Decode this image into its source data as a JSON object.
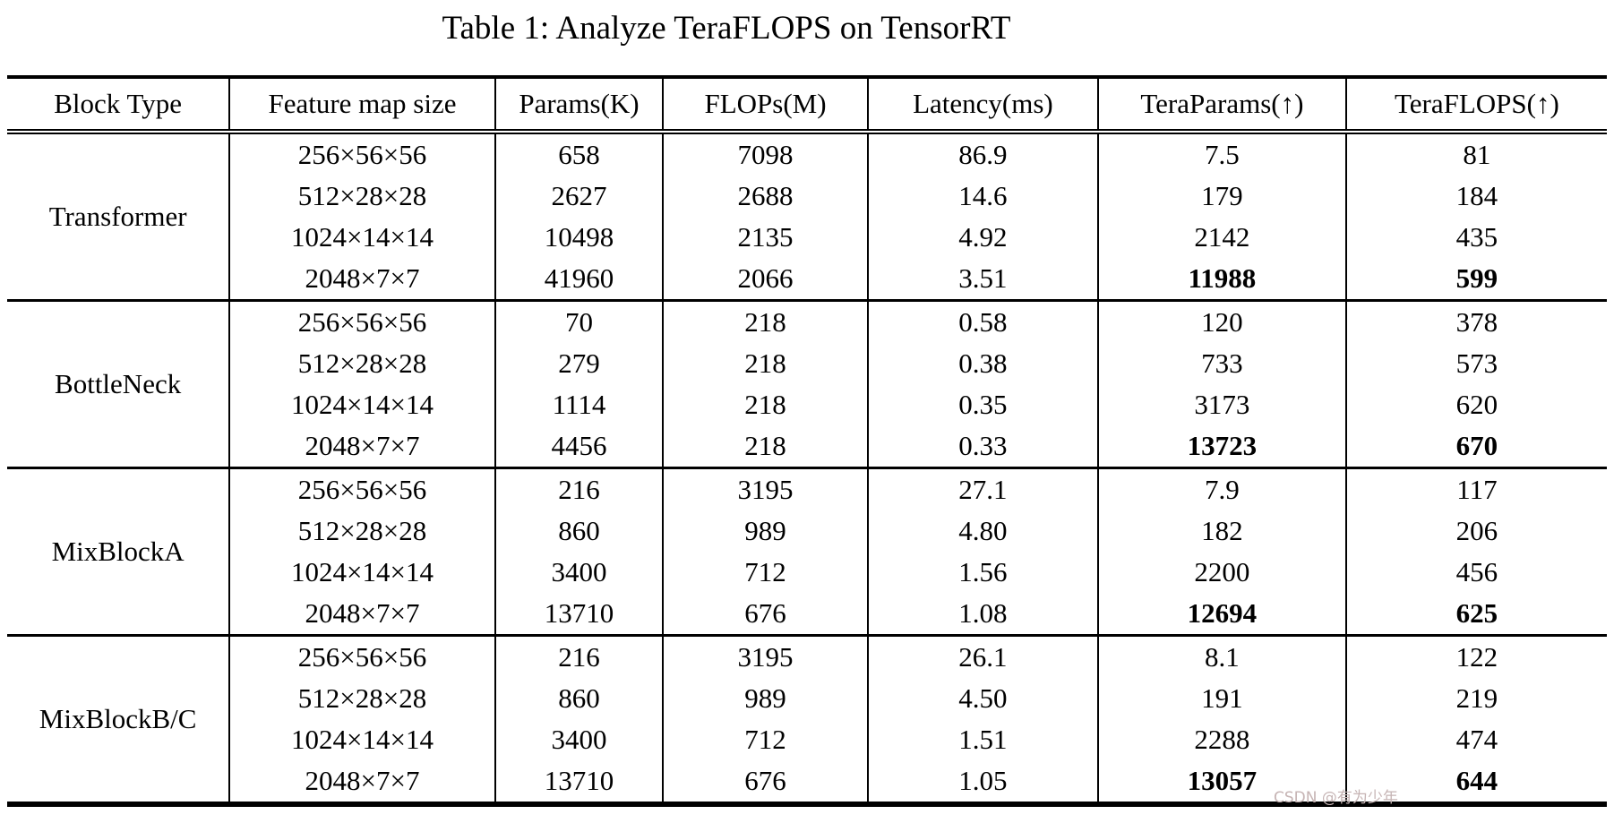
{
  "title": "Table 1: Analyze TeraFLOPS on TensorRT",
  "watermark": {
    "text": "CSDN @有为少年"
  },
  "table": {
    "columns": [
      "Block Type",
      "Feature map size",
      "Params(K)",
      "FLOPs(M)",
      "Latency(ms)",
      "TeraParams(↑)",
      "TeraFLOPS(↑)"
    ],
    "blocks": [
      {
        "block_type": "Transformer",
        "rows": [
          {
            "cells": [
              "256×56×56",
              "658",
              "7098",
              "86.9",
              "7.5",
              "81"
            ],
            "bold_cells": []
          },
          {
            "cells": [
              "512×28×28",
              "2627",
              "2688",
              "14.6",
              "179",
              "184"
            ],
            "bold_cells": []
          },
          {
            "cells": [
              "1024×14×14",
              "10498",
              "2135",
              "4.92",
              "2142",
              "435"
            ],
            "bold_cells": []
          },
          {
            "cells": [
              "2048×7×7",
              "41960",
              "2066",
              "3.51",
              "11988",
              "599"
            ],
            "bold_cells": [
              4,
              5
            ]
          }
        ]
      },
      {
        "block_type": "BottleNeck",
        "rows": [
          {
            "cells": [
              "256×56×56",
              "70",
              "218",
              "0.58",
              "120",
              "378"
            ],
            "bold_cells": []
          },
          {
            "cells": [
              "512×28×28",
              "279",
              "218",
              "0.38",
              "733",
              "573"
            ],
            "bold_cells": []
          },
          {
            "cells": [
              "1024×14×14",
              "1114",
              "218",
              "0.35",
              "3173",
              "620"
            ],
            "bold_cells": []
          },
          {
            "cells": [
              "2048×7×7",
              "4456",
              "218",
              "0.33",
              "13723",
              "670"
            ],
            "bold_cells": [
              4,
              5
            ]
          }
        ]
      },
      {
        "block_type": "MixBlockA",
        "rows": [
          {
            "cells": [
              "256×56×56",
              "216",
              "3195",
              "27.1",
              "7.9",
              "117"
            ],
            "bold_cells": []
          },
          {
            "cells": [
              "512×28×28",
              "860",
              "989",
              "4.80",
              "182",
              "206"
            ],
            "bold_cells": []
          },
          {
            "cells": [
              "1024×14×14",
              "3400",
              "712",
              "1.56",
              "2200",
              "456"
            ],
            "bold_cells": []
          },
          {
            "cells": [
              "2048×7×7",
              "13710",
              "676",
              "1.08",
              "12694",
              "625"
            ],
            "bold_cells": [
              4,
              5
            ]
          }
        ]
      },
      {
        "block_type": "MixBlockB/C",
        "rows": [
          {
            "cells": [
              "256×56×56",
              "216",
              "3195",
              "26.1",
              "8.1",
              "122"
            ],
            "bold_cells": []
          },
          {
            "cells": [
              "512×28×28",
              "860",
              "989",
              "4.50",
              "191",
              "219"
            ],
            "bold_cells": []
          },
          {
            "cells": [
              "1024×14×14",
              "3400",
              "712",
              "1.51",
              "2288",
              "474"
            ],
            "bold_cells": []
          },
          {
            "cells": [
              "2048×7×7",
              "13710",
              "676",
              "1.05",
              "13057",
              "644"
            ],
            "bold_cells": [
              4,
              5
            ]
          }
        ]
      }
    ]
  },
  "chart_data": {
    "type": "table",
    "title": "Table 1: Analyze TeraFLOPS on TensorRT",
    "columns": [
      "Block Type",
      "Feature map size",
      "Params(K)",
      "FLOPs(M)",
      "Latency(ms)",
      "TeraParams(↑)",
      "TeraFLOPS(↑)"
    ],
    "rows": [
      [
        "Transformer",
        "256×56×56",
        "658",
        "7098",
        "86.9",
        "7.5",
        "81"
      ],
      [
        "Transformer",
        "512×28×28",
        "2627",
        "2688",
        "14.6",
        "179",
        "184"
      ],
      [
        "Transformer",
        "1024×14×14",
        "10498",
        "2135",
        "4.92",
        "2142",
        "435"
      ],
      [
        "Transformer",
        "2048×7×7",
        "41960",
        "2066",
        "3.51",
        "11988",
        "599"
      ],
      [
        "BottleNeck",
        "256×56×56",
        "70",
        "218",
        "0.58",
        "120",
        "378"
      ],
      [
        "BottleNeck",
        "512×28×28",
        "279",
        "218",
        "0.38",
        "733",
        "573"
      ],
      [
        "BottleNeck",
        "1024×14×14",
        "1114",
        "218",
        "0.35",
        "3173",
        "620"
      ],
      [
        "BottleNeck",
        "2048×7×7",
        "4456",
        "218",
        "0.33",
        "13723",
        "670"
      ],
      [
        "MixBlockA",
        "256×56×56",
        "216",
        "3195",
        "27.1",
        "7.9",
        "117"
      ],
      [
        "MixBlockA",
        "512×28×28",
        "860",
        "989",
        "4.80",
        "182",
        "206"
      ],
      [
        "MixBlockA",
        "1024×14×14",
        "3400",
        "712",
        "1.56",
        "2200",
        "456"
      ],
      [
        "MixBlockA",
        "2048×7×7",
        "13710",
        "676",
        "1.08",
        "12694",
        "625"
      ],
      [
        "MixBlockB/C",
        "256×56×56",
        "216",
        "3195",
        "26.1",
        "8.1",
        "122"
      ],
      [
        "MixBlockB/C",
        "512×28×28",
        "860",
        "989",
        "4.50",
        "191",
        "219"
      ],
      [
        "MixBlockB/C",
        "1024×14×14",
        "3400",
        "712",
        "1.51",
        "2288",
        "474"
      ],
      [
        "MixBlockB/C",
        "2048×7×7",
        "13710",
        "676",
        "1.05",
        "13057",
        "644"
      ]
    ],
    "bold_values_note": "Last row of each block has bold TeraParams and TeraFLOPS values"
  }
}
